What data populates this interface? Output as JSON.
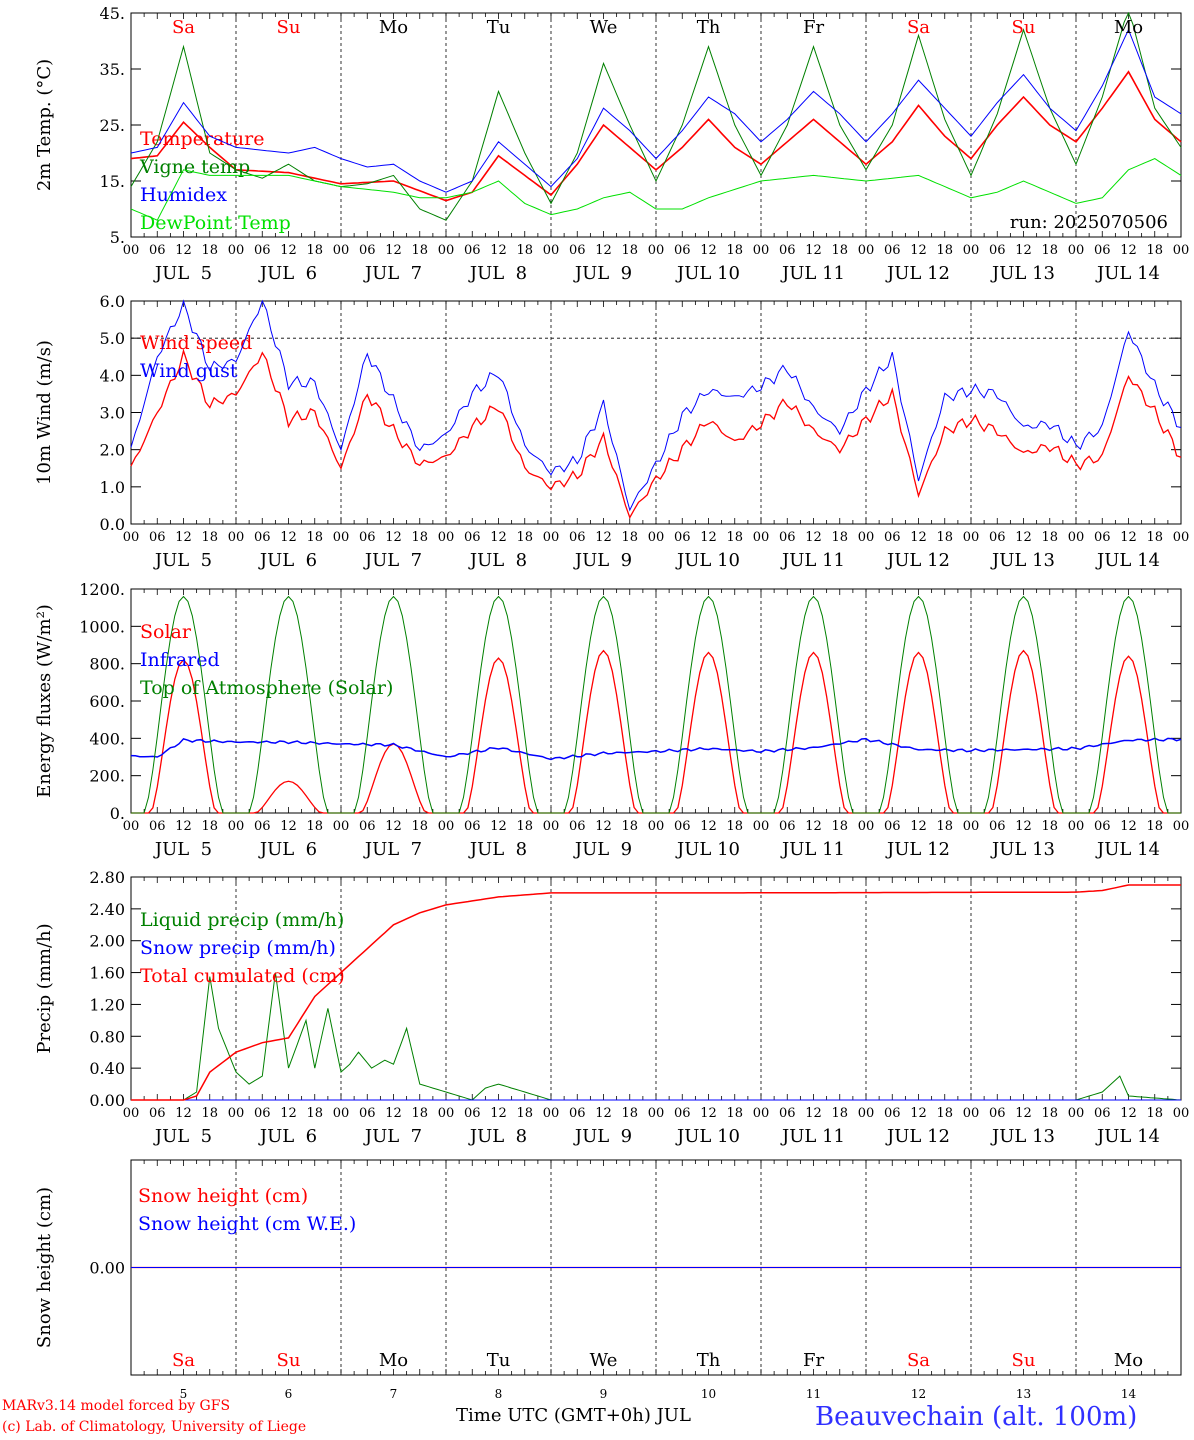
{
  "run_label": "run: 2025070506",
  "day_letters": [
    "Sa",
    "Su",
    "Mo",
    "Tu",
    "We",
    "Th",
    "Fr",
    "Sa",
    "Su",
    "Mo"
  ],
  "weekend": [
    true,
    true,
    false,
    false,
    false,
    false,
    false,
    true,
    true,
    false
  ],
  "date_labels": [
    "JUL  5",
    "JUL  6",
    "JUL  7",
    "JUL  8",
    "JUL  9",
    "JUL 10",
    "JUL 11",
    "JUL 12",
    "JUL 13",
    "JUL 14"
  ],
  "hour_labels": [
    "00",
    "06",
    "12",
    "18"
  ],
  "final_hour_label": "00",
  "bottom_day_numbers": [
    "5",
    "6",
    "7",
    "8",
    "9",
    "10",
    "11",
    "12",
    "13",
    "14"
  ],
  "footer": {
    "model": "MARv3.14 model forced by GFS",
    "copyright": "(c) Lab. of Climatology, University of Liege",
    "xlabel": "Time UTC (GMT+0h) JUL",
    "station": "Beauvechain (alt. 100m)"
  },
  "colors": {
    "red": "#ff0000",
    "green": "#008000",
    "blue": "#0000ff",
    "lightgreen": "#00e000"
  },
  "chart_data": [
    {
      "type": "line",
      "ylabel": "2m Temp. (°C)",
      "ylim": [
        5,
        45
      ],
      "yticks": [
        "5.",
        "15.",
        "25.",
        "35.",
        "45."
      ],
      "ytick_values": [
        5,
        15,
        25,
        35,
        45
      ],
      "x_units": "hours since 2025-07-05 00 UTC",
      "series": [
        {
          "name": "Temperature",
          "color": "#ff0000",
          "width": 1.6,
          "x": [
            0,
            6,
            12,
            18,
            24,
            36,
            48,
            60,
            72,
            78,
            84,
            90,
            96,
            102,
            108,
            114,
            120,
            126,
            132,
            138,
            144,
            150,
            156,
            162,
            168,
            174,
            180,
            186,
            192,
            198,
            204,
            210,
            216,
            222,
            228,
            234,
            240
          ],
          "y": [
            19,
            19.5,
            25.5,
            21,
            17,
            16.5,
            14.5,
            15,
            11.5,
            13,
            19.5,
            16,
            12.5,
            18,
            25,
            21,
            17,
            21,
            26,
            21,
            18,
            22,
            26,
            22,
            18,
            22,
            28.5,
            23,
            19,
            25,
            30,
            25,
            22,
            28,
            34.5,
            26,
            22
          ]
        },
        {
          "name": "Vigne temp",
          "color": "#008000",
          "width": 1,
          "x": [
            0,
            6,
            12,
            18,
            24,
            30,
            36,
            42,
            48,
            54,
            60,
            66,
            72,
            78,
            84,
            90,
            96,
            102,
            108,
            114,
            120,
            126,
            132,
            138,
            144,
            150,
            156,
            162,
            168,
            174,
            180,
            186,
            192,
            198,
            204,
            210,
            216,
            222,
            228,
            234,
            240
          ],
          "y": [
            14,
            22,
            39,
            20,
            17,
            15.5,
            18,
            15,
            14,
            14.5,
            16,
            10,
            8,
            15,
            31,
            20,
            11,
            20,
            36,
            25,
            15,
            25,
            39,
            25,
            16,
            25,
            39,
            25,
            17,
            25,
            41,
            26,
            16,
            27,
            42,
            28,
            18,
            30,
            46,
            28,
            21
          ]
        },
        {
          "name": "Humidex",
          "color": "#0000ff",
          "width": 1,
          "x": [
            0,
            6,
            12,
            18,
            24,
            36,
            42,
            48,
            54,
            60,
            66,
            72,
            78,
            84,
            90,
            96,
            102,
            108,
            114,
            120,
            126,
            132,
            138,
            144,
            150,
            156,
            162,
            168,
            174,
            180,
            186,
            192,
            198,
            204,
            210,
            216,
            222,
            228,
            234,
            240
          ],
          "y": [
            20,
            21,
            29,
            23,
            21,
            20,
            21,
            19,
            17.5,
            18,
            15,
            13,
            15,
            22,
            18,
            14,
            19,
            28,
            24,
            19,
            24,
            30,
            27,
            22,
            26,
            31,
            27,
            22,
            27,
            33,
            28,
            23,
            29,
            34,
            28,
            24,
            32,
            42,
            30,
            27
          ]
        },
        {
          "name": "DewPoint Temp",
          "color": "#00e000",
          "width": 1,
          "x": [
            0,
            6,
            12,
            18,
            24,
            36,
            48,
            60,
            66,
            72,
            78,
            84,
            90,
            96,
            102,
            108,
            114,
            120,
            126,
            132,
            144,
            156,
            168,
            180,
            186,
            192,
            198,
            204,
            210,
            216,
            222,
            228,
            234,
            240
          ],
          "y": [
            10,
            8,
            17,
            16,
            16,
            16,
            14,
            13,
            12,
            12,
            13,
            15,
            11,
            9,
            10,
            12,
            13,
            10,
            10,
            12,
            15,
            16,
            15,
            16,
            14,
            12,
            13,
            15,
            13,
            11,
            12,
            17,
            19,
            16
          ]
        }
      ]
    },
    {
      "type": "line",
      "ylabel": "10m Wind (m/s)",
      "ylim": [
        0,
        6
      ],
      "yticks": [
        "0.0",
        "1.0",
        "2.0",
        "3.0",
        "4.0",
        "5.0",
        "6.0"
      ],
      "ytick_values": [
        0,
        1,
        2,
        3,
        4,
        5,
        6
      ],
      "hline": 5,
      "series": [
        {
          "name": "Wind speed",
          "color": "#ff0000",
          "width": 1.3,
          "x": [
            0,
            6,
            12,
            18,
            24,
            30,
            36,
            42,
            48,
            54,
            60,
            66,
            72,
            78,
            84,
            90,
            96,
            102,
            108,
            114,
            120,
            126,
            132,
            138,
            144,
            150,
            156,
            162,
            168,
            174,
            180,
            186,
            192,
            198,
            204,
            210,
            216,
            222,
            228,
            234,
            240
          ],
          "y": [
            1.5,
            3,
            4.5,
            3.2,
            3.5,
            4.6,
            2.8,
            3,
            1.5,
            3.5,
            2.5,
            1.6,
            1.8,
            2.6,
            3.2,
            1.5,
            1.0,
            1.3,
            2.3,
            0.2,
            1.2,
            2.0,
            2.8,
            2.2,
            2.7,
            3.3,
            2.5,
            2.0,
            2.8,
            3.5,
            0.8,
            2.5,
            2.8,
            2.5,
            1.9,
            2.1,
            1.6,
            1.8,
            4.0,
            3.0,
            1.8
          ]
        },
        {
          "name": "Wind gust",
          "color": "#0000ff",
          "width": 1,
          "x": [
            0,
            6,
            12,
            18,
            24,
            30,
            36,
            42,
            48,
            54,
            60,
            66,
            72,
            78,
            84,
            90,
            96,
            102,
            108,
            114,
            120,
            126,
            132,
            138,
            144,
            150,
            156,
            162,
            168,
            174,
            180,
            186,
            192,
            198,
            204,
            210,
            216,
            222,
            228,
            234,
            240
          ],
          "y": [
            2,
            4.5,
            5.9,
            4.2,
            4.4,
            6,
            3.8,
            3.8,
            2,
            4.6,
            3.3,
            2,
            2.4,
            3.5,
            4.1,
            2.1,
            1.4,
            1.7,
            3.2,
            0.4,
            1.6,
            2.9,
            3.6,
            3.4,
            3.7,
            4.2,
            3.1,
            2.5,
            3.6,
            4.5,
            1.2,
            3.4,
            3.6,
            3.5,
            2.6,
            2.7,
            2.1,
            2.6,
            5.2,
            3.7,
            2.6
          ]
        }
      ]
    },
    {
      "type": "line",
      "ylabel": "Energy fluxes (W/m²)",
      "ylim": [
        0,
        1200
      ],
      "yticks": [
        "0.",
        "200.",
        "400.",
        "600.",
        "800.",
        "1000.",
        "1200."
      ],
      "ytick_values": [
        0,
        200,
        400,
        600,
        800,
        1000,
        1200
      ],
      "series": [
        {
          "name": "Solar",
          "color": "#ff0000",
          "width": 1.3,
          "daily_peak": [
            820,
            170,
            370,
            830,
            870,
            860,
            860,
            860,
            870,
            840
          ]
        },
        {
          "name": "Infrared",
          "color": "#0000ff",
          "width": 1.5,
          "x": [
            0,
            6,
            12,
            24,
            36,
            48,
            60,
            72,
            84,
            96,
            108,
            120,
            132,
            144,
            156,
            168,
            180,
            192,
            204,
            216,
            228,
            240
          ],
          "y": [
            305,
            300,
            390,
            380,
            380,
            370,
            365,
            300,
            350,
            290,
            320,
            330,
            345,
            330,
            350,
            395,
            340,
            335,
            340,
            345,
            390,
            395
          ]
        },
        {
          "name": "Top of Atmosphere (Solar)",
          "color": "#008000",
          "width": 1,
          "daily_peak": [
            1160,
            1160,
            1160,
            1160,
            1160,
            1160,
            1160,
            1160,
            1160,
            1160
          ]
        }
      ]
    },
    {
      "type": "line",
      "ylabel": "Precip (mm/h)",
      "ylim": [
        0,
        2.8
      ],
      "yticks": [
        "0.00",
        "0.40",
        "0.80",
        "1.20",
        "1.60",
        "2.00",
        "2.40",
        "2.80"
      ],
      "ytick_values": [
        0,
        0.4,
        0.8,
        1.2,
        1.6,
        2.0,
        2.4,
        2.8
      ],
      "series": [
        {
          "name": "Liquid precip (mm/h)",
          "color": "#008000",
          "width": 1,
          "x": [
            0,
            12,
            15,
            18,
            20,
            24,
            27,
            30,
            33,
            36,
            38,
            40,
            42,
            45,
            48,
            50,
            52,
            55,
            58,
            60,
            63,
            66,
            69,
            72,
            78,
            81,
            84,
            96,
            216,
            222,
            224,
            226,
            228,
            240
          ],
          "y": [
            0,
            0,
            0.1,
            1.55,
            0.9,
            0.35,
            0.2,
            0.3,
            1.6,
            0.4,
            0.7,
            1.0,
            0.4,
            1.15,
            0.35,
            0.45,
            0.6,
            0.4,
            0.5,
            0.45,
            0.9,
            0.2,
            0.15,
            0.1,
            0,
            0.15,
            0.2,
            0,
            0,
            0.1,
            0.2,
            0.3,
            0.05,
            0
          ]
        },
        {
          "name": "Snow precip (mm/h)",
          "color": "#0000ff",
          "width": 1,
          "x": [
            0,
            240
          ],
          "y": [
            0,
            0
          ]
        },
        {
          "name": "Total cumulated (cm)",
          "color": "#ff0000",
          "width": 1.5,
          "x": [
            0,
            12,
            15,
            18,
            24,
            30,
            36,
            42,
            48,
            54,
            60,
            66,
            72,
            78,
            84,
            96,
            132,
            216,
            222,
            228,
            240
          ],
          "y": [
            0,
            0,
            0.05,
            0.35,
            0.6,
            0.72,
            0.78,
            1.3,
            1.6,
            1.9,
            2.2,
            2.35,
            2.45,
            2.5,
            2.55,
            2.6,
            2.6,
            2.61,
            2.63,
            2.7,
            2.7
          ]
        }
      ]
    },
    {
      "type": "line",
      "ylabel": "Snow height (cm)",
      "ylim": [
        -1,
        1
      ],
      "yticks": [
        "0.00"
      ],
      "ytick_values": [
        0
      ],
      "series": [
        {
          "name": "Snow height (cm)",
          "color": "#ff0000",
          "width": 1.2,
          "x": [
            0,
            240
          ],
          "y": [
            0,
            0
          ]
        },
        {
          "name": "Snow height (cm W.E.)",
          "color": "#0000ff",
          "width": 1,
          "x": [
            0,
            240
          ],
          "y": [
            0,
            0
          ]
        }
      ]
    }
  ]
}
